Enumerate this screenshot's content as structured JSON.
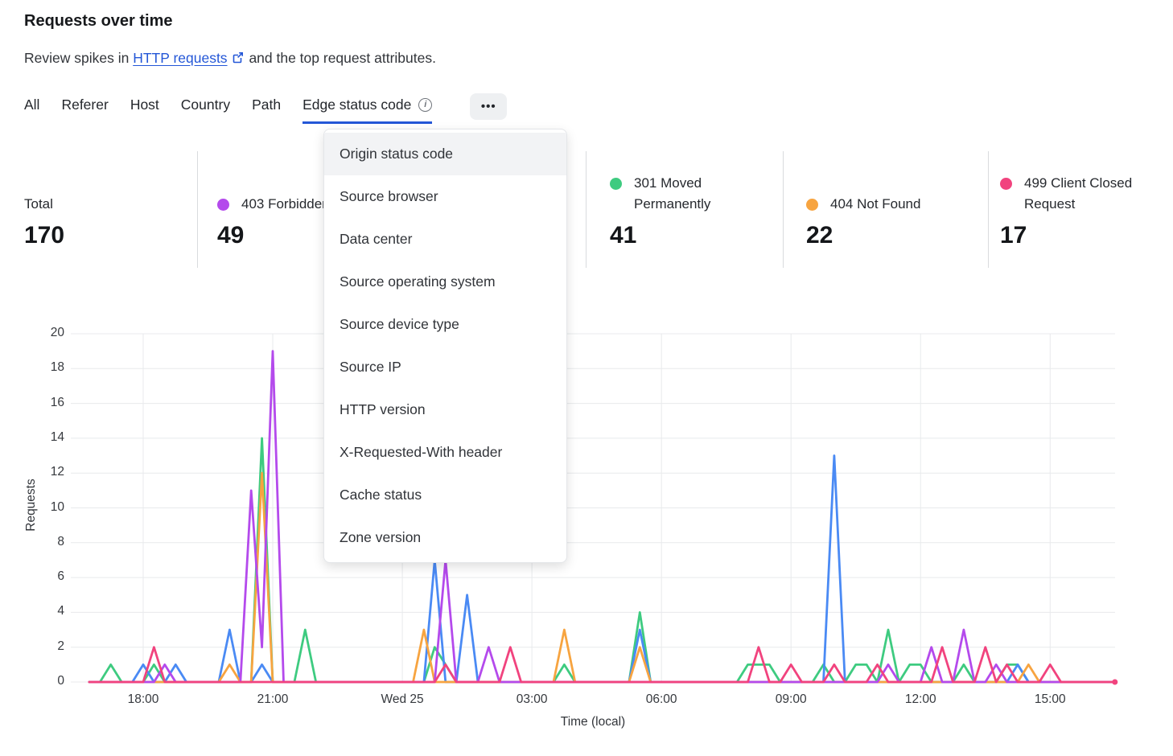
{
  "page": {
    "title": "Requests over time",
    "subtitle_prefix": "Review spikes in",
    "subtitle_link": "HTTP requests",
    "subtitle_suffix": "and the top request attributes."
  },
  "icons": {
    "info": "i",
    "more": "•••",
    "external_link": "open-in-new-window"
  },
  "tabs": {
    "items": [
      {
        "label": "All",
        "active": false
      },
      {
        "label": "Referer",
        "active": false
      },
      {
        "label": "Host",
        "active": false
      },
      {
        "label": "Country",
        "active": false
      },
      {
        "label": "Path",
        "active": false
      },
      {
        "label": "Edge status code",
        "active": true,
        "info_icon": true
      }
    ]
  },
  "menu": {
    "items": [
      {
        "label": "Origin status code",
        "highlighted": true
      },
      {
        "label": "Source browser",
        "highlighted": false
      },
      {
        "label": "Data center",
        "highlighted": false
      },
      {
        "label": "Source operating system",
        "highlighted": false
      },
      {
        "label": "Source device type",
        "highlighted": false
      },
      {
        "label": "Source IP",
        "highlighted": false
      },
      {
        "label": "HTTP version",
        "highlighted": false
      },
      {
        "label": "X-Requested-With header",
        "highlighted": false
      },
      {
        "label": "Cache status",
        "highlighted": false
      },
      {
        "label": "Zone version",
        "highlighted": false
      }
    ]
  },
  "stats": {
    "columns": [
      {
        "label": "Total",
        "value": "170",
        "color": null
      },
      {
        "label": "403 Forbidden",
        "value": "49",
        "color": "#b44aec"
      },
      {
        "label": "301 Moved Permanently",
        "value": "41",
        "color": "#3ecb80"
      },
      {
        "label": "404 Not Found",
        "value": "22",
        "color": "#f7a440"
      },
      {
        "label": "499 Client Closed Request",
        "value": "17",
        "color": "#f1437e"
      }
    ]
  },
  "chart_data": {
    "type": "line",
    "xlabel": "Time (local)",
    "ylabel": "Requests",
    "ylim": [
      0,
      20
    ],
    "y_ticks": [
      0,
      2,
      4,
      6,
      8,
      10,
      12,
      14,
      16,
      18,
      20
    ],
    "grid": true,
    "start_time": "16:45",
    "interval_minutes": 15,
    "x_tick_labels": [
      "18:00",
      "21:00",
      "Wed 25",
      "03:00",
      "06:00",
      "09:00",
      "12:00",
      "15:00"
    ],
    "x_tick_indices": [
      5,
      17,
      29,
      41,
      53,
      65,
      77,
      89
    ],
    "series": [
      {
        "name": "301 Moved Permanently",
        "color": "#3ecb80",
        "end_dot": false,
        "values": [
          0,
          0,
          1,
          0,
          0,
          0,
          1,
          0,
          0,
          0,
          0,
          0,
          0,
          0,
          0,
          0,
          14,
          0,
          0,
          0,
          3,
          0,
          0,
          0,
          0,
          0,
          0,
          0,
          0,
          0,
          0,
          0,
          2,
          1,
          0,
          0,
          0,
          0,
          0,
          0,
          0,
          0,
          0,
          0,
          1,
          0,
          0,
          0,
          0,
          0,
          0,
          4,
          0,
          0,
          0,
          0,
          0,
          0,
          0,
          0,
          0,
          1,
          1,
          1,
          0,
          0,
          0,
          0,
          1,
          0,
          0,
          1,
          1,
          0,
          3,
          0,
          1,
          1,
          0,
          0,
          0,
          1,
          0,
          0,
          0,
          1,
          1,
          0,
          0,
          0,
          0,
          0,
          0,
          0,
          0,
          0
        ]
      },
      {
        "name": null,
        "color": "#4a8af4",
        "end_dot": false,
        "values": [
          0,
          0,
          0,
          0,
          0,
          1,
          0,
          0,
          1,
          0,
          0,
          0,
          0,
          3,
          0,
          0,
          1,
          0,
          0,
          0,
          0,
          0,
          0,
          0,
          0,
          0,
          0,
          0,
          0,
          0,
          0,
          0,
          7,
          0,
          0,
          5,
          0,
          0,
          0,
          0,
          0,
          0,
          0,
          0,
          0,
          0,
          0,
          0,
          0,
          0,
          0,
          3,
          0,
          0,
          0,
          0,
          0,
          0,
          0,
          0,
          0,
          0,
          0,
          0,
          0,
          0,
          0,
          0,
          0,
          13,
          0,
          0,
          0,
          0,
          0,
          0,
          0,
          0,
          0,
          0,
          0,
          0,
          0,
          0,
          0,
          0,
          1,
          0,
          0,
          0,
          0,
          0,
          0,
          0,
          0,
          0
        ]
      },
      {
        "name": "404 Not Found",
        "color": "#f7a440",
        "end_dot": false,
        "values": [
          0,
          0,
          0,
          0,
          0,
          0,
          0,
          0,
          0,
          0,
          0,
          0,
          0,
          1,
          0,
          0,
          12,
          0,
          0,
          0,
          0,
          0,
          0,
          0,
          0,
          0,
          0,
          0,
          0,
          0,
          0,
          3,
          0,
          0,
          0,
          0,
          0,
          0,
          0,
          0,
          0,
          0,
          0,
          0,
          3,
          0,
          0,
          0,
          0,
          0,
          0,
          2,
          0,
          0,
          0,
          0,
          0,
          0,
          0,
          0,
          0,
          0,
          0,
          0,
          0,
          0,
          0,
          0,
          0,
          0,
          0,
          0,
          0,
          0,
          0,
          0,
          0,
          0,
          0,
          0,
          0,
          0,
          0,
          0,
          0,
          0,
          0,
          1,
          0,
          0,
          0,
          0,
          0,
          0,
          0,
          0
        ]
      },
      {
        "name": "403 Forbidden",
        "color": "#b44aec",
        "end_dot": false,
        "values": [
          0,
          0,
          0,
          0,
          0,
          0,
          0,
          1,
          0,
          0,
          0,
          0,
          0,
          0,
          0,
          11,
          2,
          19,
          0,
          0,
          0,
          0,
          0,
          0,
          0,
          0,
          0,
          0,
          0,
          0,
          0,
          0,
          0,
          7,
          0,
          0,
          0,
          2,
          0,
          0,
          0,
          0,
          0,
          0,
          0,
          0,
          0,
          0,
          0,
          0,
          0,
          0,
          0,
          0,
          0,
          0,
          0,
          0,
          0,
          0,
          0,
          0,
          0,
          0,
          0,
          0,
          0,
          0,
          0,
          0,
          0,
          0,
          0,
          0,
          1,
          0,
          0,
          0,
          2,
          0,
          0,
          3,
          0,
          0,
          1,
          0,
          0,
          0,
          0,
          0,
          0,
          0,
          0,
          0,
          0,
          0
        ]
      },
      {
        "name": "499 Client Closed Request",
        "color": "#f1437e",
        "end_dot": true,
        "values": [
          0,
          0,
          0,
          0,
          0,
          0,
          2,
          0,
          0,
          0,
          0,
          0,
          0,
          0,
          0,
          0,
          0,
          0,
          0,
          0,
          0,
          0,
          0,
          0,
          0,
          0,
          0,
          0,
          0,
          0,
          0,
          0,
          0,
          1,
          0,
          0,
          0,
          0,
          0,
          2,
          0,
          0,
          0,
          0,
          0,
          0,
          0,
          0,
          0,
          0,
          0,
          0,
          0,
          0,
          0,
          0,
          0,
          0,
          0,
          0,
          0,
          0,
          2,
          0,
          0,
          1,
          0,
          0,
          0,
          1,
          0,
          0,
          0,
          1,
          0,
          0,
          0,
          0,
          0,
          2,
          0,
          0,
          0,
          2,
          0,
          1,
          0,
          0,
          0,
          1,
          0,
          0,
          0,
          0,
          0,
          0
        ]
      }
    ]
  }
}
